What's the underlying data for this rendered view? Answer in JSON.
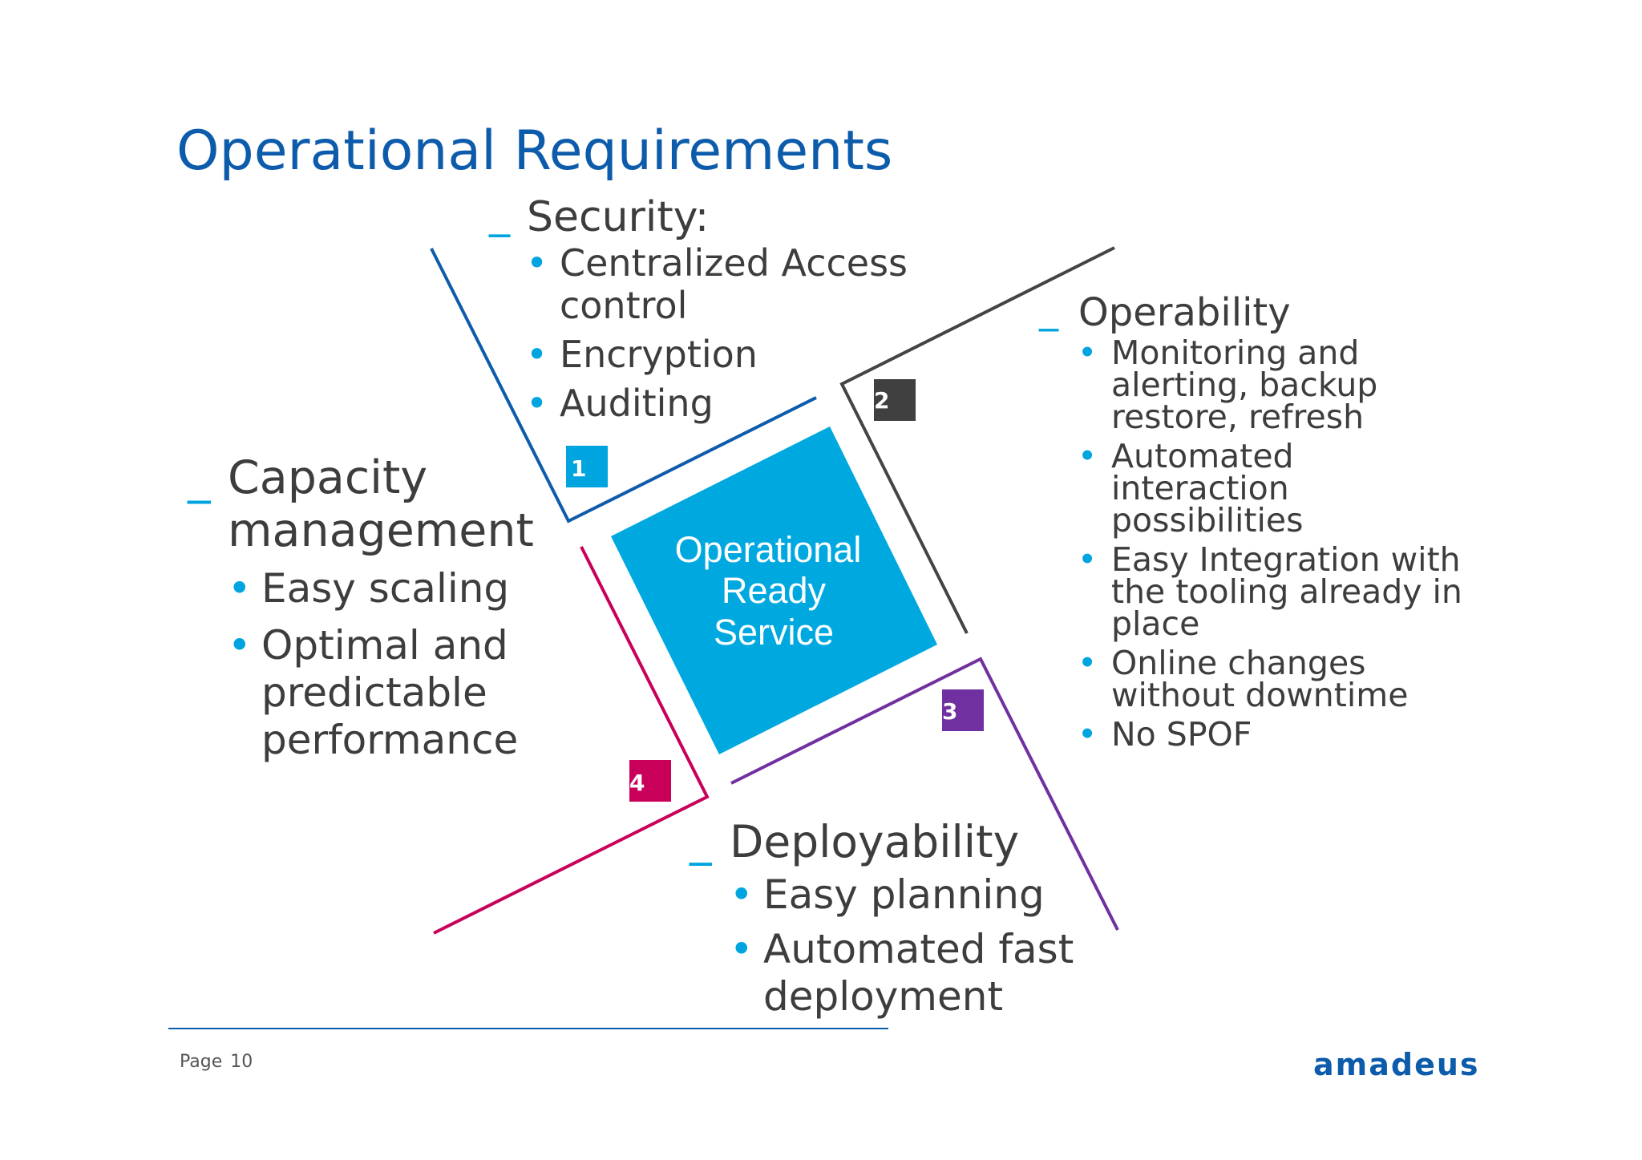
{
  "title": "Operational Requirements",
  "center": {
    "lines": [
      "Operational",
      "Ready",
      "Service"
    ]
  },
  "markers": [
    "1",
    "2",
    "3",
    "4"
  ],
  "security": {
    "heading": "Security:",
    "items": [
      "Centralized Access control",
      "Encryption",
      "Auditing"
    ]
  },
  "operability": {
    "heading": "Operability",
    "items": [
      "Monitoring and alerting, backup restore, refresh",
      "Automated interaction possibilities",
      "Easy Integration with the tooling already in place",
      "Online changes without downtime",
      "No SPOF"
    ]
  },
  "capacity": {
    "heading": "Capacity management",
    "items": [
      "Easy scaling",
      "Optimal and predictable performance"
    ]
  },
  "deployability": {
    "heading": "Deployability",
    "items": [
      "Easy planning",
      "Automated fast deployment"
    ]
  },
  "dash": "_",
  "bullet": "•",
  "footer": {
    "page_label": "Page",
    "page_number": "10",
    "logo": "amadeus"
  },
  "colors": {
    "title": "#0d5cab",
    "accent": "#00a5df",
    "line_1": "#0d5cab",
    "line_2": "#444444",
    "line_3": "#7030a0",
    "line_4": "#c8005a",
    "marker_1": "#00a5df",
    "marker_2": "#404040",
    "marker_3": "#7030a0",
    "marker_4": "#c8005a",
    "center": "#00a8e0"
  }
}
